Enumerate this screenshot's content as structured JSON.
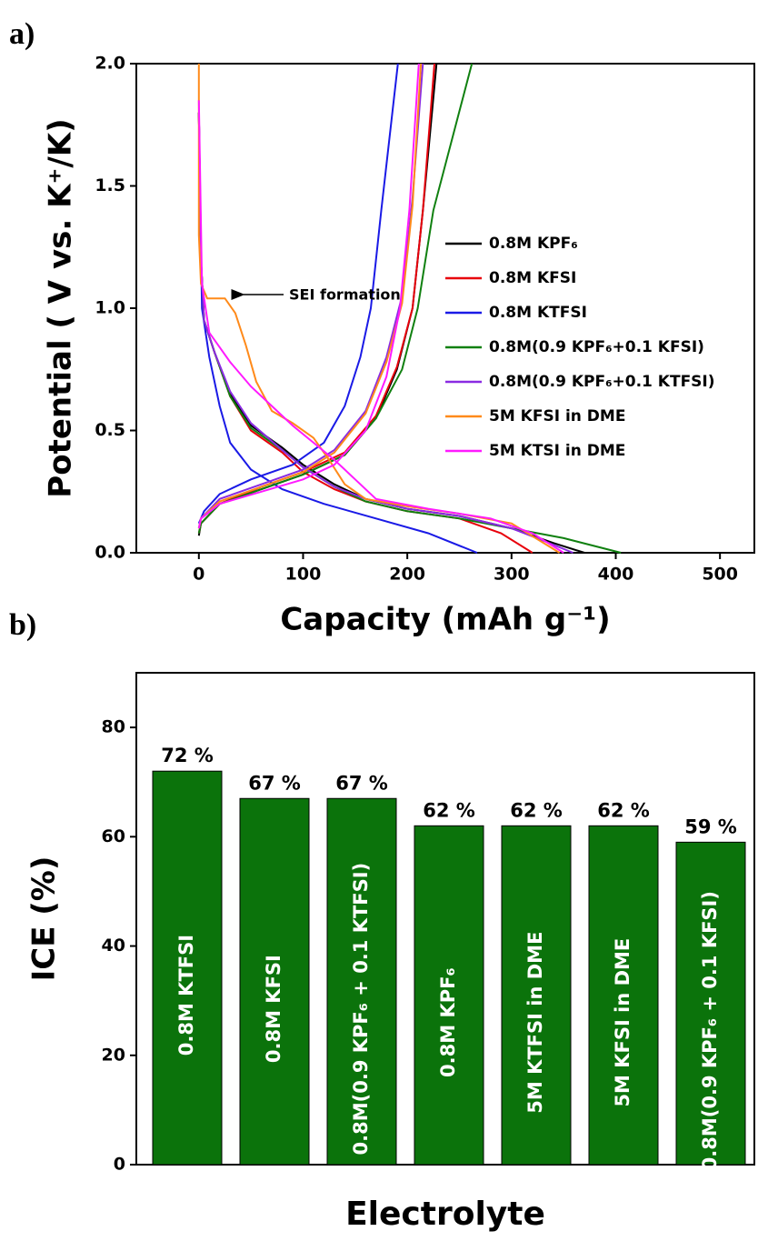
{
  "chart_data": [
    {
      "type": "line",
      "panel_label": "a)",
      "x_label": "Capacity (mAh g⁻¹)",
      "y_label": "Potential ( V vs. K⁺/K)",
      "annotation": "SEI formation",
      "xlim": [
        -60,
        533
      ],
      "xticks": [
        0,
        100,
        200,
        300,
        400,
        500
      ],
      "ylim": [
        0,
        2
      ],
      "yticks": [
        {
          "value": 0,
          "label": "0.0"
        },
        0.5,
        {
          "value": 1,
          "label": "1.0"
        },
        1.5,
        {
          "value": 2,
          "label": "2.0"
        }
      ],
      "legend": "right",
      "series": [
        {
          "name": "0.8M KPF₆",
          "color": "#000000",
          "x": [
            0,
            2,
            5,
            15,
            30,
            50,
            80,
            100,
            130,
            160,
            200,
            250,
            300,
            340,
            370,
            null,
            0,
            2,
            20,
            60,
            100,
            140,
            170,
            190,
            205,
            215,
            228
          ],
          "values": [
            1.8,
            1.2,
            0.95,
            0.82,
            0.65,
            0.52,
            0.43,
            0.36,
            0.28,
            0.22,
            0.18,
            0.15,
            0.1,
            0.04,
            0.0,
            null,
            0.07,
            0.12,
            0.2,
            0.26,
            0.32,
            0.4,
            0.55,
            0.75,
            1.0,
            1.4,
            2.0
          ]
        },
        {
          "name": "0.8M KFSI",
          "color": "#e8000b",
          "x": [
            0,
            2,
            5,
            15,
            30,
            50,
            80,
            100,
            130,
            160,
            200,
            250,
            290,
            320,
            null,
            0,
            2,
            20,
            60,
            100,
            140,
            170,
            190,
            205,
            215,
            226
          ],
          "values": [
            1.8,
            1.2,
            0.95,
            0.82,
            0.64,
            0.5,
            0.41,
            0.33,
            0.26,
            0.21,
            0.17,
            0.14,
            0.08,
            0.0,
            null,
            0.08,
            0.12,
            0.2,
            0.27,
            0.33,
            0.41,
            0.56,
            0.76,
            1.0,
            1.4,
            2.0
          ]
        },
        {
          "name": "0.8M KTFSI",
          "color": "#1a1ae6",
          "x": [
            0,
            3,
            10,
            20,
            30,
            50,
            80,
            120,
            170,
            220,
            267,
            null,
            0,
            5,
            20,
            50,
            90,
            120,
            140,
            155,
            165,
            175,
            191
          ],
          "values": [
            1.8,
            1.0,
            0.8,
            0.6,
            0.45,
            0.34,
            0.26,
            0.2,
            0.14,
            0.08,
            0.0,
            null,
            0.12,
            0.17,
            0.24,
            0.3,
            0.36,
            0.45,
            0.6,
            0.8,
            1.0,
            1.4,
            2.0
          ]
        },
        {
          "name": "0.8M(0.9 KPF₆+0.1 KFSI)",
          "color": "#108010",
          "x": [
            0,
            2,
            5,
            15,
            30,
            50,
            80,
            100,
            130,
            160,
            200,
            250,
            300,
            350,
            405,
            null,
            0,
            2,
            20,
            60,
            100,
            140,
            170,
            195,
            210,
            225,
            262
          ],
          "values": [
            1.8,
            1.2,
            0.95,
            0.82,
            0.64,
            0.51,
            0.42,
            0.35,
            0.27,
            0.21,
            0.17,
            0.14,
            0.1,
            0.06,
            0.0,
            null,
            0.08,
            0.12,
            0.2,
            0.26,
            0.32,
            0.4,
            0.55,
            0.75,
            1.0,
            1.4,
            2.0
          ]
        },
        {
          "name": "0.8M(0.9 KPF₆+0.1 KTFSI)",
          "color": "#8a2be2",
          "x": [
            0,
            2,
            5,
            15,
            30,
            50,
            80,
            100,
            130,
            160,
            200,
            250,
            300,
            330,
            359,
            null,
            0,
            2,
            20,
            60,
            100,
            130,
            160,
            180,
            195,
            205,
            215
          ],
          "values": [
            1.8,
            1.2,
            0.95,
            0.82,
            0.66,
            0.53,
            0.42,
            0.35,
            0.27,
            0.22,
            0.18,
            0.15,
            0.1,
            0.05,
            0.0,
            null,
            0.1,
            0.14,
            0.22,
            0.28,
            0.34,
            0.42,
            0.58,
            0.8,
            1.05,
            1.45,
            2.0
          ]
        },
        {
          "name": "5M KFSI in DME",
          "color": "#ff8a1a",
          "x": [
            0,
            0,
            2,
            8,
            18,
            25,
            35,
            45,
            55,
            70,
            90,
            110,
            125,
            140,
            160,
            200,
            250,
            300,
            346,
            null,
            0,
            2,
            20,
            60,
            100,
            130,
            160,
            180,
            195,
            205,
            213
          ],
          "values": [
            2.0,
            1.3,
            1.1,
            1.04,
            1.04,
            1.04,
            0.98,
            0.85,
            0.7,
            0.58,
            0.53,
            0.47,
            0.38,
            0.28,
            0.22,
            0.19,
            0.16,
            0.12,
            0.0,
            null,
            0.1,
            0.14,
            0.21,
            0.27,
            0.33,
            0.41,
            0.57,
            0.78,
            1.02,
            1.42,
            2.0
          ]
        },
        {
          "name": "5M KTSI in DME",
          "color": "#ff1aff",
          "x": [
            0,
            3,
            10,
            30,
            50,
            70,
            90,
            110,
            130,
            150,
            170,
            220,
            280,
            320,
            350,
            null,
            0,
            2,
            20,
            60,
            100,
            130,
            160,
            180,
            193,
            202,
            211
          ],
          "values": [
            1.85,
            1.1,
            0.9,
            0.78,
            0.68,
            0.6,
            0.52,
            0.45,
            0.38,
            0.3,
            0.22,
            0.18,
            0.14,
            0.08,
            0.0,
            null,
            0.1,
            0.14,
            0.2,
            0.25,
            0.3,
            0.36,
            0.5,
            0.72,
            1.0,
            1.4,
            2.0
          ]
        }
      ]
    },
    {
      "type": "bar",
      "panel_label": "b)",
      "x_label": "Electrolyte",
      "y_label": "ICE (%)",
      "categories": [
        "0.8M KTFSI",
        "0.8M KFSI",
        "0.8M(0.9 KPF₆ + 0.1 KTFSI)",
        "0.8M KPF₆",
        "5M KTFSI in DME",
        "5M KFSI in DME",
        "0.8M(0.9 KPF₆ + 0.1 KFSI)"
      ],
      "values": [
        72,
        67,
        67,
        62,
        62,
        62,
        59
      ],
      "value_labels": [
        "72 %",
        "67 %",
        "67 %",
        "62 %",
        "62 %",
        "62 %",
        "59 %"
      ],
      "color": "#0b730b",
      "ylim": [
        0,
        90
      ],
      "yticks": [
        0,
        20,
        40,
        60,
        80
      ]
    }
  ]
}
